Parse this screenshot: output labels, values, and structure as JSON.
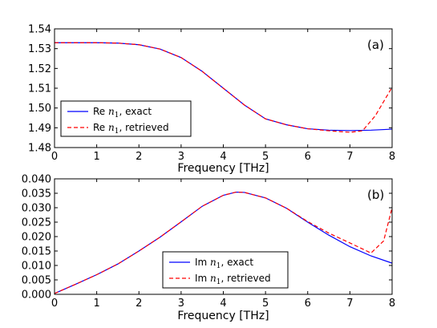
{
  "chart_data": [
    {
      "type": "line",
      "panel_label": "(a)",
      "title": "",
      "xlabel": "Frequency [THz]",
      "ylabel": "",
      "xlim": [
        0,
        8
      ],
      "ylim": [
        1.48,
        1.54
      ],
      "xticks": [
        "0",
        "1",
        "2",
        "3",
        "4",
        "5",
        "6",
        "7",
        "8"
      ],
      "yticks": [
        "1.48",
        "1.49",
        "1.50",
        "1.51",
        "1.52",
        "1.53",
        "1.54"
      ],
      "grid": false,
      "legend_position": "bottom-left",
      "series": [
        {
          "name": "Re n1, exact",
          "legend_prefix": "Re",
          "legend_suffix": ", exact",
          "color": "#0000ff",
          "dash": "solid",
          "x": [
            0,
            1,
            1.5,
            2,
            2.5,
            3,
            3.5,
            4,
            4.5,
            5,
            5.5,
            6,
            6.5,
            7,
            7.5,
            8
          ],
          "y": [
            1.533,
            1.533,
            1.5328,
            1.532,
            1.5298,
            1.5255,
            1.5185,
            1.51,
            1.5015,
            1.4945,
            1.4915,
            1.4895,
            1.4888,
            1.4886,
            1.4888,
            1.4893
          ]
        },
        {
          "name": "Re n1, retrieved",
          "legend_prefix": "Re",
          "legend_suffix": ", retrieved",
          "color": "#ff0000",
          "dash": "dashed",
          "x": [
            0,
            1,
            1.5,
            2,
            2.5,
            3,
            3.5,
            4,
            4.5,
            5,
            5.5,
            6,
            6.5,
            7,
            7.3,
            7.6,
            8
          ],
          "y": [
            1.533,
            1.533,
            1.5328,
            1.532,
            1.5298,
            1.5255,
            1.5185,
            1.51,
            1.5015,
            1.4945,
            1.4915,
            1.4895,
            1.4885,
            1.4877,
            1.4885,
            1.496,
            1.5105
          ]
        }
      ]
    },
    {
      "type": "line",
      "panel_label": "(b)",
      "title": "",
      "xlabel": "Frequency [THz]",
      "ylabel": "",
      "xlim": [
        0,
        8
      ],
      "ylim": [
        0,
        0.04
      ],
      "xticks": [
        "0",
        "1",
        "2",
        "3",
        "4",
        "5",
        "6",
        "7",
        "8"
      ],
      "yticks": [
        "0.000",
        "0.005",
        "0.010",
        "0.015",
        "0.020",
        "0.025",
        "0.030",
        "0.035",
        "0.040"
      ],
      "grid": false,
      "legend_position": "bottom-right",
      "series": [
        {
          "name": "Im n1, exact",
          "legend_prefix": "Im",
          "legend_suffix": ", exact",
          "color": "#0000ff",
          "dash": "solid",
          "x": [
            0,
            0.5,
            1,
            1.5,
            2,
            2.5,
            3,
            3.5,
            4,
            4.3,
            4.5,
            5,
            5.5,
            6,
            6.5,
            7,
            7.5,
            8
          ],
          "y": [
            0.0003,
            0.0035,
            0.0068,
            0.0105,
            0.015,
            0.0198,
            0.0251,
            0.0305,
            0.0343,
            0.0354,
            0.0353,
            0.0334,
            0.0298,
            0.025,
            0.0205,
            0.0165,
            0.0133,
            0.0108
          ]
        },
        {
          "name": "Im n1, retrieved",
          "legend_prefix": "Im",
          "legend_suffix": ", retrieved",
          "color": "#ff0000",
          "dash": "dashed",
          "x": [
            0,
            0.5,
            1,
            1.5,
            2,
            2.5,
            3,
            3.5,
            4,
            4.3,
            4.5,
            5,
            5.5,
            6,
            6.5,
            7,
            7.5,
            7.8,
            8
          ],
          "y": [
            0.0003,
            0.0035,
            0.0068,
            0.0105,
            0.015,
            0.0198,
            0.0251,
            0.0305,
            0.0343,
            0.0354,
            0.0353,
            0.0334,
            0.0298,
            0.0252,
            0.0212,
            0.0178,
            0.0143,
            0.0185,
            0.03
          ]
        }
      ]
    }
  ]
}
